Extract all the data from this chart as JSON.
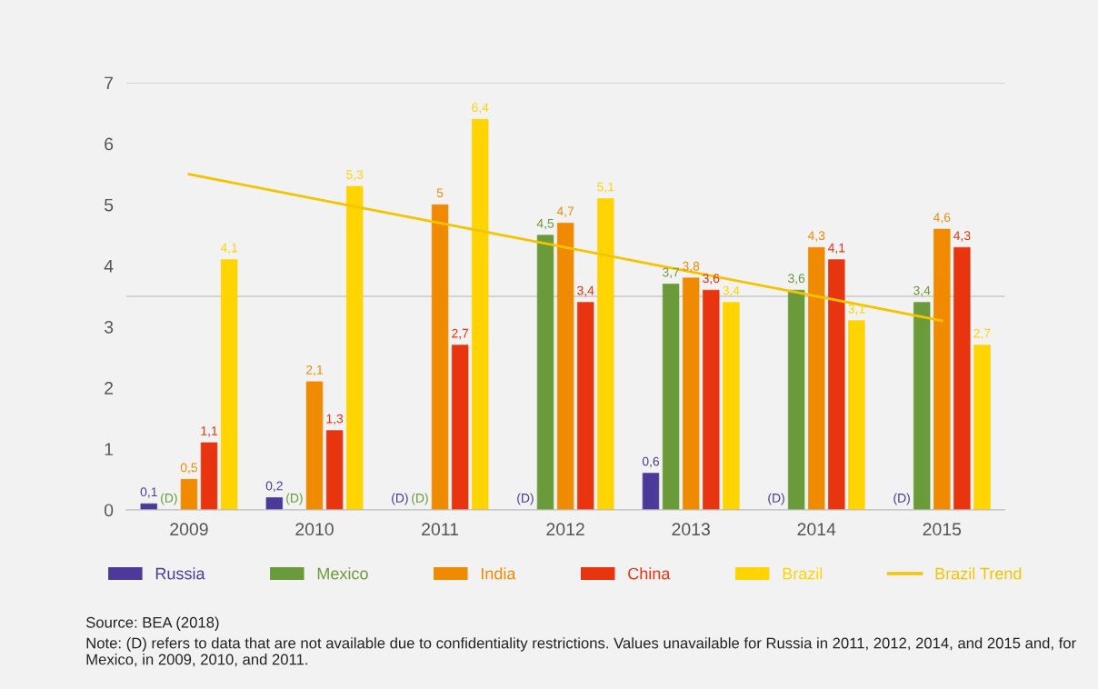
{
  "chart_data": {
    "type": "bar",
    "categories": [
      "2009",
      "2010",
      "2011",
      "2012",
      "2013",
      "2014",
      "2015"
    ],
    "series": [
      {
        "name": "Russia",
        "color": "#4b3a9a",
        "values": [
          0.1,
          0.2,
          null,
          null,
          0.6,
          null,
          null
        ],
        "value_labels": [
          "0,1",
          "0,2",
          "(D)",
          "(D)",
          "0,6",
          "(D)",
          "(D)"
        ]
      },
      {
        "name": "Mexico",
        "color": "#6a9a3a",
        "values": [
          null,
          null,
          null,
          4.5,
          3.7,
          3.6,
          3.4
        ],
        "value_labels": [
          "(D)",
          "(D)",
          "(D)",
          "4,5",
          "3,7",
          "3,6",
          "3,4"
        ]
      },
      {
        "name": "India",
        "color": "#f08a00",
        "values": [
          0.5,
          2.1,
          5,
          4.7,
          3.8,
          4.3,
          4.6
        ],
        "value_labels": [
          "0,5",
          "2,1",
          "5",
          "4,7",
          "3,8",
          "4,3",
          "4,6"
        ]
      },
      {
        "name": "China",
        "color": "#e8340f",
        "values": [
          1.1,
          1.3,
          2.7,
          3.4,
          3.6,
          4.1,
          4.3
        ],
        "value_labels": [
          "1,1",
          "1,3",
          "2,7",
          "3,4",
          "3,6",
          "4,1",
          "4,3"
        ]
      },
      {
        "name": "Brazil",
        "color": "#ffd400",
        "values": [
          4.1,
          5.3,
          6.4,
          5.1,
          3.4,
          3.1,
          2.7
        ],
        "value_labels": [
          "4,1",
          "5,3",
          "6,4",
          "5,1",
          "3,4",
          "3,1",
          "2,7"
        ]
      },
      {
        "name": "Brazil Trend",
        "type": "line",
        "color": "#f5c400",
        "values": [
          5.5,
          5.1,
          4.7,
          4.3,
          3.9,
          3.5,
          3.1
        ]
      }
    ],
    "ylim": [
      0,
      7
    ],
    "yticks": [
      0,
      1,
      2,
      3,
      4,
      5,
      6,
      7
    ],
    "ref_lines": [
      {
        "axis": "y",
        "value": 3.5,
        "color": "#c8c8c8"
      },
      {
        "axis": "y",
        "value": 7,
        "color": "#c8c8c8"
      }
    ],
    "grid": false,
    "legend": "bottom",
    "annotations": [
      "Source: BEA (2018)",
      "Note: (D) refers to data that are not available due to confidentiality restrictions. Values unavailable for Russia in 2011, 2012, 2014, and 2015 and, for Mexico, in 2009, 2010, and 2011."
    ]
  }
}
